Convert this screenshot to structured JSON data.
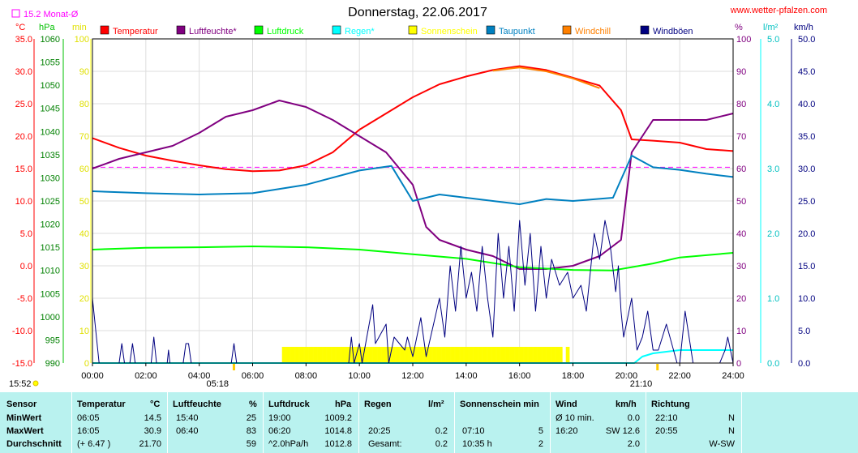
{
  "header": {
    "title": "Donnerstag, 22.06.2017",
    "site": "www.wetter-pfalzen.com",
    "monthly_avg": "15.2 Monat-Ø"
  },
  "units": {
    "temp": "°C",
    "hpa": "hPa",
    "min": "min",
    "pct": "%",
    "rain": "l/m²",
    "wind": "km/h"
  },
  "legend": [
    {
      "label": "Temperatur",
      "color": "#ff0000"
    },
    {
      "label": "Luftfeuchte*",
      "color": "#800080"
    },
    {
      "label": "Luftdruck",
      "color": "#00ff00"
    },
    {
      "label": "Regen*",
      "color": "#00ffff"
    },
    {
      "label": "Sonnenschein",
      "color": "#ffff00"
    },
    {
      "label": "Taupunkt",
      "color": "#0080c0"
    },
    {
      "label": "Windchill",
      "color": "#ff8000"
    },
    {
      "label": "Windböen",
      "color": "#000080"
    }
  ],
  "sun": {
    "sunrise": "05:18",
    "sunset": "21:10",
    "left_time": "15:52"
  },
  "chart_data": {
    "type": "line",
    "title": "Donnerstag, 22.06.2017",
    "x_ticks": [
      "00:00",
      "02:00",
      "04:00",
      "06:00",
      "08:00",
      "10:00",
      "12:00",
      "14:00",
      "16:00",
      "18:00",
      "20:00",
      "22:00",
      "24:00"
    ],
    "xlim": [
      0,
      24
    ],
    "axes": {
      "temp_c": {
        "ticks": [
          "35.0",
          "30.0",
          "25.0",
          "20.0",
          "15.0",
          "10.0",
          "5.0",
          "0.0",
          "-5.0",
          "-10.0",
          "-15.0"
        ],
        "range": [
          -15,
          35
        ]
      },
      "pressure_hpa": {
        "ticks": [
          "1060",
          "1055",
          "1050",
          "1045",
          "1040",
          "1035",
          "1030",
          "1025",
          "1020",
          "1015",
          "1010",
          "1005",
          "1000",
          "995",
          "990"
        ],
        "range": [
          990,
          1060
        ]
      },
      "sun_min": {
        "ticks": [
          "100",
          "90",
          "80",
          "70",
          "60",
          "50",
          "40",
          "30",
          "20",
          "10",
          "0"
        ],
        "range": [
          0,
          100
        ]
      },
      "humidity_pct": {
        "ticks": [
          "100",
          "90",
          "80",
          "70",
          "60",
          "50",
          "40",
          "30",
          "20",
          "10",
          "0"
        ],
        "range": [
          0,
          100
        ]
      },
      "rain_lm2": {
        "ticks": [
          "5.0",
          "4.0",
          "3.0",
          "2.0",
          "1.0",
          "0.0"
        ],
        "range": [
          0,
          5
        ]
      },
      "wind_kmh": {
        "ticks": [
          "50.0",
          "45.0",
          "40.0",
          "35.0",
          "30.0",
          "25.0",
          "20.0",
          "15.0",
          "10.0",
          "5.0",
          "0.0"
        ],
        "range": [
          0,
          50
        ]
      }
    },
    "monthly_avg_temp": 15.2,
    "series": [
      {
        "name": "Temperatur",
        "axis": "temp_c",
        "color": "#ff0000",
        "points": [
          [
            0,
            19.7
          ],
          [
            1,
            18.2
          ],
          [
            2,
            17.0
          ],
          [
            3,
            16.2
          ],
          [
            4,
            15.5
          ],
          [
            5,
            14.9
          ],
          [
            6,
            14.6
          ],
          [
            7,
            14.7
          ],
          [
            8,
            15.5
          ],
          [
            9,
            17.5
          ],
          [
            10,
            21.0
          ],
          [
            11,
            23.5
          ],
          [
            12,
            26.0
          ],
          [
            13,
            28.0
          ],
          [
            14,
            29.2
          ],
          [
            15,
            30.2
          ],
          [
            16,
            30.8
          ],
          [
            17,
            30.2
          ],
          [
            18,
            29.0
          ],
          [
            19,
            27.8
          ],
          [
            19.8,
            24.0
          ],
          [
            20.2,
            19.5
          ],
          [
            21,
            19.3
          ],
          [
            22,
            19.0
          ],
          [
            23,
            18.0
          ],
          [
            24,
            17.7
          ]
        ]
      },
      {
        "name": "Windchill",
        "axis": "temp_c",
        "color": "#ff8000",
        "points": [
          [
            15,
            30.1
          ],
          [
            16,
            30.6
          ],
          [
            17,
            30.0
          ],
          [
            18,
            28.9
          ],
          [
            19,
            27.4
          ]
        ]
      },
      {
        "name": "Luftfeuchte*",
        "axis": "humidity_pct",
        "color": "#800080",
        "points": [
          [
            0,
            60
          ],
          [
            1,
            63
          ],
          [
            2,
            65
          ],
          [
            3,
            67
          ],
          [
            4,
            71
          ],
          [
            5,
            76
          ],
          [
            6,
            78
          ],
          [
            7,
            81
          ],
          [
            8,
            79
          ],
          [
            9,
            75
          ],
          [
            10,
            70
          ],
          [
            11,
            65
          ],
          [
            12,
            55
          ],
          [
            12.5,
            42
          ],
          [
            13,
            38
          ],
          [
            14,
            35
          ],
          [
            15,
            33
          ],
          [
            16,
            29
          ],
          [
            17,
            29
          ],
          [
            18,
            30
          ],
          [
            19,
            33
          ],
          [
            19.8,
            38
          ],
          [
            20.2,
            65
          ],
          [
            21,
            75
          ],
          [
            22,
            75
          ],
          [
            23,
            75
          ],
          [
            24,
            77
          ]
        ]
      },
      {
        "name": "Luftdruck",
        "axis": "pressure_hpa",
        "color": "#00ff00",
        "points": [
          [
            0,
            1014.5
          ],
          [
            2,
            1014.9
          ],
          [
            4,
            1015.0
          ],
          [
            6,
            1015.2
          ],
          [
            8,
            1015.0
          ],
          [
            10,
            1014.5
          ],
          [
            12,
            1013.5
          ],
          [
            14,
            1012.5
          ],
          [
            16,
            1010.7
          ],
          [
            18,
            1010.1
          ],
          [
            19.5,
            1010.0
          ],
          [
            21,
            1011.5
          ],
          [
            22,
            1012.8
          ],
          [
            24,
            1013.8
          ]
        ]
      },
      {
        "name": "Taupunkt",
        "axis": "temp_c",
        "color": "#0080c0",
        "points": [
          [
            0,
            11.5
          ],
          [
            2,
            11.2
          ],
          [
            4,
            11.0
          ],
          [
            6,
            11.2
          ],
          [
            8,
            12.5
          ],
          [
            10,
            14.7
          ],
          [
            11.2,
            15.4
          ],
          [
            12,
            10.0
          ],
          [
            13,
            11.0
          ],
          [
            14,
            10.5
          ],
          [
            15,
            10.0
          ],
          [
            16,
            9.5
          ],
          [
            17,
            10.3
          ],
          [
            18,
            10.0
          ],
          [
            19.5,
            10.5
          ],
          [
            20.2,
            17.0
          ],
          [
            21,
            15.2
          ],
          [
            22,
            14.8
          ],
          [
            23,
            14.2
          ],
          [
            24,
            13.7
          ]
        ]
      },
      {
        "name": "Regen*",
        "axis": "rain_lm2",
        "color": "#00ffff",
        "points": [
          [
            0,
            0
          ],
          [
            20.3,
            0
          ],
          [
            20.6,
            0.1
          ],
          [
            21,
            0.15
          ],
          [
            22,
            0.2
          ],
          [
            24,
            0.2
          ]
        ]
      },
      {
        "name": "Windböen",
        "axis": "wind_kmh",
        "color": "#000080",
        "points": [
          [
            0,
            10
          ],
          [
            0.25,
            0
          ],
          [
            1.0,
            0
          ],
          [
            1.1,
            3
          ],
          [
            1.2,
            0
          ],
          [
            1.4,
            0
          ],
          [
            1.5,
            3
          ],
          [
            1.6,
            0
          ],
          [
            2.2,
            0
          ],
          [
            2.3,
            4
          ],
          [
            2.4,
            0
          ],
          [
            2.8,
            0
          ],
          [
            2.85,
            2
          ],
          [
            2.9,
            0
          ],
          [
            3.4,
            0
          ],
          [
            3.5,
            3
          ],
          [
            3.6,
            3
          ],
          [
            3.7,
            0
          ],
          [
            5.2,
            0
          ],
          [
            5.3,
            3
          ],
          [
            5.4,
            0
          ],
          [
            9.6,
            0
          ],
          [
            9.7,
            4
          ],
          [
            9.8,
            0
          ],
          [
            10.0,
            3
          ],
          [
            10.1,
            0
          ],
          [
            10.5,
            9
          ],
          [
            10.6,
            3
          ],
          [
            11.0,
            6
          ],
          [
            11.1,
            0
          ],
          [
            11.3,
            4
          ],
          [
            11.5,
            3
          ],
          [
            11.7,
            2
          ],
          [
            11.8,
            4
          ],
          [
            12,
            1
          ],
          [
            12.3,
            7
          ],
          [
            12.5,
            1
          ],
          [
            13.0,
            10
          ],
          [
            13.2,
            4
          ],
          [
            13.4,
            15
          ],
          [
            13.6,
            8
          ],
          [
            13.8,
            18
          ],
          [
            14.0,
            10
          ],
          [
            14.2,
            14
          ],
          [
            14.4,
            8
          ],
          [
            14.6,
            18
          ],
          [
            14.8,
            10
          ],
          [
            15.0,
            4
          ],
          [
            15.2,
            20
          ],
          [
            15.4,
            10
          ],
          [
            15.6,
            18
          ],
          [
            15.8,
            8
          ],
          [
            16.0,
            22
          ],
          [
            16.2,
            12
          ],
          [
            16.4,
            20
          ],
          [
            16.6,
            8
          ],
          [
            16.8,
            18
          ],
          [
            17.0,
            10
          ],
          [
            17.2,
            16
          ],
          [
            17.5,
            12
          ],
          [
            17.8,
            14
          ],
          [
            18.0,
            10
          ],
          [
            18.3,
            12
          ],
          [
            18.5,
            8
          ],
          [
            18.8,
            20
          ],
          [
            19.0,
            16
          ],
          [
            19.2,
            22
          ],
          [
            19.4,
            18
          ],
          [
            19.6,
            11
          ],
          [
            19.7,
            15
          ],
          [
            19.8,
            8
          ],
          [
            19.9,
            4
          ],
          [
            20.2,
            10
          ],
          [
            20.4,
            2
          ],
          [
            20.6,
            4
          ],
          [
            20.8,
            8
          ],
          [
            21.0,
            2
          ],
          [
            21.2,
            2
          ],
          [
            21.5,
            6
          ],
          [
            21.7,
            3
          ],
          [
            21.9,
            0
          ],
          [
            22.0,
            0
          ],
          [
            22.2,
            8
          ],
          [
            22.5,
            0
          ],
          [
            23.5,
            0
          ],
          [
            23.7,
            2
          ],
          [
            23.8,
            4
          ],
          [
            24,
            0
          ]
        ]
      }
    ],
    "sunshine_bars": {
      "axis": "sun_min",
      "color": "#ffff00",
      "start": 7.1,
      "end": 17.85,
      "gaps": [
        [
          17.6,
          17.72
        ]
      ],
      "height_min": 5
    }
  },
  "table": {
    "headers": {
      "sensor": "Sensor",
      "temp": "Temperatur",
      "temp_unit": "°C",
      "hum": "Luftfeuchte",
      "hum_unit": "%",
      "press": "Luftdruck",
      "press_unit": "hPa",
      "rain": "Regen",
      "rain_unit": "l/m²",
      "sun": "Sonnenschein min",
      "wind": "Wind",
      "wind_unit": "km/h",
      "dir": "Richtung"
    },
    "rows": [
      {
        "label": "MinWert",
        "temp_time": "06:05",
        "temp_val": "14.5",
        "hum_time": "15:40",
        "hum_val": "25",
        "press_time": "19:00",
        "press_val": "1009.2",
        "rain_time": "",
        "rain_val": "",
        "sun_time": "",
        "sun_val": "",
        "wind_time": "Ø 10 min.",
        "wind_val": "0.0",
        "dir_time": "22:10",
        "dir_val": "N"
      },
      {
        "label": "MaxWert",
        "temp_time": "16:05",
        "temp_val": "30.9",
        "hum_time": "06:40",
        "hum_val": "83",
        "press_time": "06:20",
        "press_val": "1014.8",
        "rain_time": "20:25",
        "rain_val": "0.2",
        "sun_time": "07:10",
        "sun_val": "5",
        "wind_time": "16:20",
        "wind_val": "SW 12.6",
        "dir_time": "20:55",
        "dir_val": "N"
      },
      {
        "label": "Durchschnitt",
        "temp_time": "(+ 6.47 )",
        "temp_val": "21.70",
        "hum_time": "",
        "hum_val": "59",
        "press_time": "^2.0hPa/h",
        "press_val": "1012.8",
        "rain_time": "Gesamt:",
        "rain_val": "0.2",
        "sun_time": "10:35 h",
        "sun_val": "2",
        "wind_time": "",
        "wind_val": "2.0",
        "dir_time": "",
        "dir_val": "W-SW"
      }
    ]
  }
}
